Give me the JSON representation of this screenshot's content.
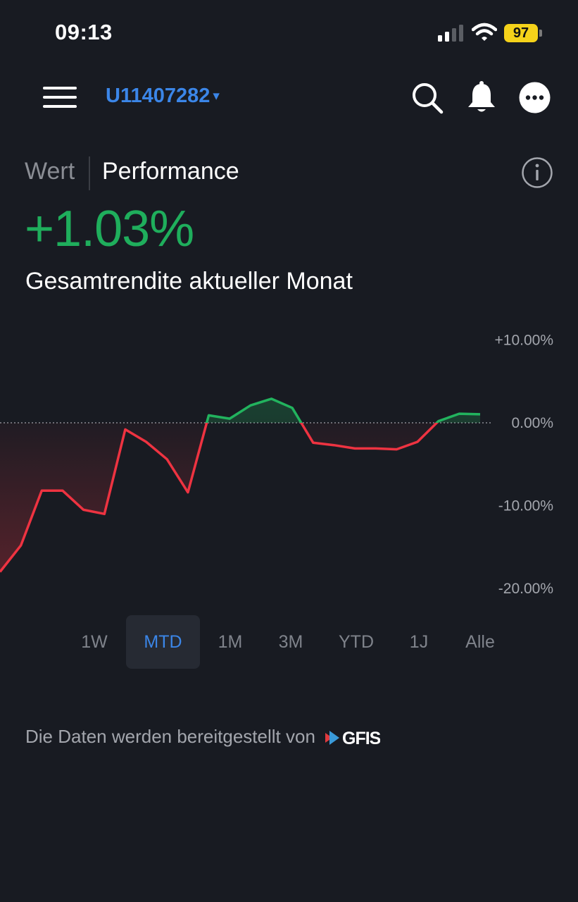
{
  "status_bar": {
    "time": "09:13",
    "battery": "97"
  },
  "header": {
    "account": "U11407282",
    "account_caret": "▾"
  },
  "tabs": {
    "value_label": "Wert",
    "performance_label": "Performance"
  },
  "performance": {
    "value": "+1.03%",
    "label": "Gesamtrendite aktueller Monat"
  },
  "chart_data": {
    "type": "line",
    "y_ticks": [
      "+10.00%",
      "0.00%",
      "-10.00%",
      "-20.00%"
    ],
    "ylim": [
      -23,
      11
    ],
    "series": [
      {
        "values": [
          -18,
          -14.8,
          -8.2,
          -8.2,
          -10.5,
          -11,
          -0.8,
          -2.3,
          -4.4,
          -8.4,
          0.9,
          0.5,
          2.1,
          2.9,
          1.8,
          -2.4,
          -2.7,
          -3.1,
          -3.1,
          -3.2,
          -2.3,
          0.2,
          1.1,
          1.03
        ]
      }
    ],
    "colors": {
      "positive": "#22b35e",
      "negative": "#ee3341"
    },
    "zero_line": "dotted",
    "grid": false
  },
  "ranges": {
    "items": [
      "1W",
      "MTD",
      "1M",
      "3M",
      "YTD",
      "1J",
      "Alle"
    ],
    "active": "MTD"
  },
  "footer": {
    "text": "Die Daten werden bereitgestellt von",
    "provider_logo": "GFIS"
  },
  "icons": [
    "menu-icon",
    "search-icon",
    "bell-icon",
    "more-icon",
    "info-icon",
    "signal-icon",
    "wifi-icon",
    "battery-icon"
  ]
}
